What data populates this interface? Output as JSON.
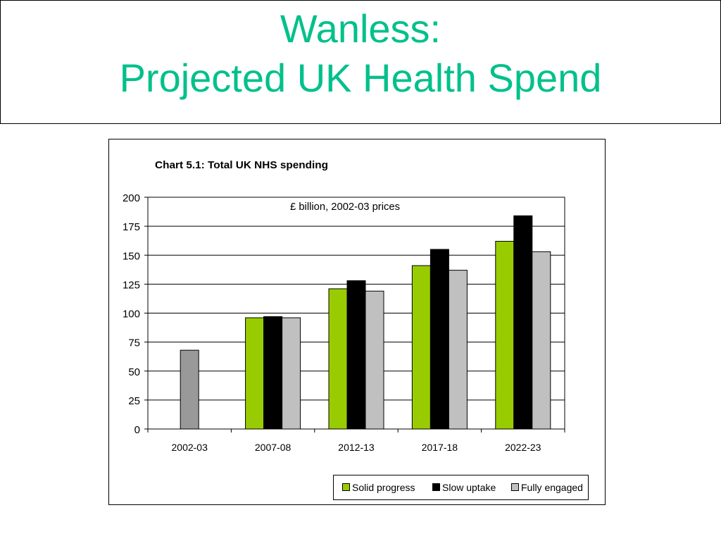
{
  "slide": {
    "title_line1": "Wanless:",
    "title_line2": "Projected UK Health Spend"
  },
  "chart_data": {
    "type": "bar",
    "title": "Chart 5.1: Total UK NHS spending",
    "subtitle": "£ billion, 2002-03 prices",
    "categories": [
      "2002-03",
      "2007-08",
      "2012-13",
      "2017-18",
      "2022-23"
    ],
    "yticks": [
      "0",
      "25",
      "50",
      "75",
      "100",
      "125",
      "150",
      "175",
      "200"
    ],
    "ylim": [
      0,
      200
    ],
    "grid": true,
    "legend_position": "bottom-right",
    "baseline": {
      "category": "2002-03",
      "value": 68,
      "color": "#999999"
    },
    "series": [
      {
        "name": "Solid progress",
        "color": "#99cc00",
        "values": [
          null,
          96,
          121,
          141,
          162
        ]
      },
      {
        "name": "Slow uptake",
        "color": "#000000",
        "values": [
          null,
          97,
          128,
          155,
          184
        ]
      },
      {
        "name": "Fully engaged",
        "color": "#c0c0c0",
        "values": [
          null,
          96,
          119,
          137,
          153
        ]
      }
    ]
  }
}
